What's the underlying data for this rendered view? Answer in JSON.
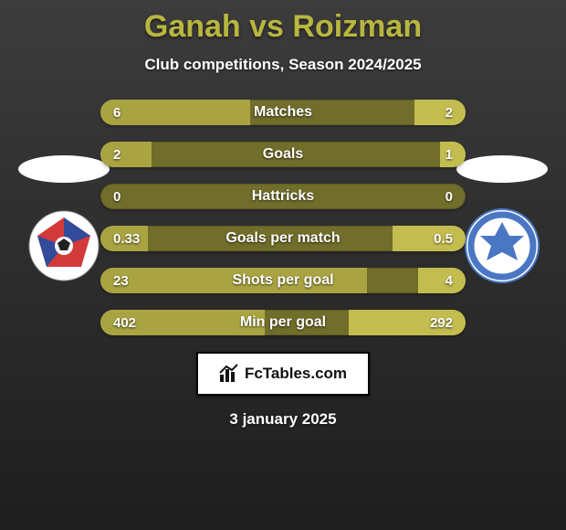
{
  "header": {
    "title": "Ganah vs Roizman",
    "title_color": "#b8b63f",
    "subtitle": "Club competitions, Season 2024/2025"
  },
  "background": {
    "color_top": "#3c3c3c",
    "color_bottom": "#1e1e1e"
  },
  "teams": {
    "left": {
      "name": "Ganah",
      "club_circle_bg": "#ffffff",
      "club_inner_color": "#d23a3a",
      "club_accent": "#324b9a"
    },
    "right": {
      "name": "Roizman",
      "club_circle_bg": "#ffffff",
      "club_inner_color": "#4a77c4",
      "club_accent": "#2d5aa8"
    }
  },
  "bars": {
    "left_color": "#a9a441",
    "right_color": "#c3bd4f",
    "track_color": "#716d2a",
    "text_color": "#ffffff",
    "rows": [
      {
        "label": "Matches",
        "left": "6",
        "right": "2",
        "left_pct": 41,
        "right_pct": 14
      },
      {
        "label": "Goals",
        "left": "2",
        "right": "1",
        "left_pct": 14,
        "right_pct": 7
      },
      {
        "label": "Hattricks",
        "left": "0",
        "right": "0",
        "left_pct": 0,
        "right_pct": 0
      },
      {
        "label": "Goals per match",
        "left": "0.33",
        "right": "0.5",
        "left_pct": 13,
        "right_pct": 20
      },
      {
        "label": "Shots per goal",
        "left": "23",
        "right": "4",
        "left_pct": 73,
        "right_pct": 13
      },
      {
        "label": "Min per goal",
        "left": "402",
        "right": "292",
        "left_pct": 45,
        "right_pct": 32
      }
    ]
  },
  "footer": {
    "brand": "FcTables.com",
    "date": "3 january 2025"
  }
}
